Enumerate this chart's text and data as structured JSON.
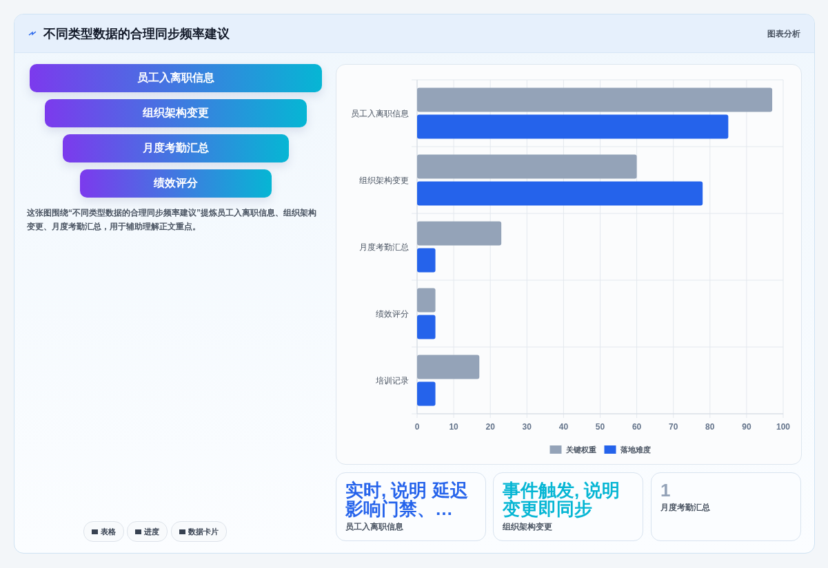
{
  "chart_data": [
    {
      "type": "other",
      "title": "不同类型数据的合理同步频率建议",
      "categories": [
        "员工入离职信息",
        "组织架构变更",
        "月度考勤汇总",
        "绩效评分"
      ],
      "annotations": [
        "图表分析",
        "这张图围绕“不同类型数据的合理同步频率建议”提炼员工入离职信息、组织架构变更、月度考勤汇总，用于辅助理解正文重点。",
        "表格",
        "进度",
        "数据卡片"
      ]
    },
    {
      "type": "bar",
      "orientation": "horizontal",
      "categories": [
        "员工入离职信息",
        "组织架构变更",
        "月度考勤汇总",
        "绩效评分",
        "培训记录"
      ],
      "series": [
        {
          "name": "关键权重",
          "color": "#94a3b8",
          "values": [
            97,
            60,
            23,
            5,
            17
          ]
        },
        {
          "name": "落地难度",
          "color": "#2563eb",
          "values": [
            85,
            78,
            5,
            5,
            5
          ]
        }
      ],
      "xlim": [
        0,
        100
      ],
      "xticks": [
        0,
        10,
        20,
        30,
        40,
        50,
        60,
        70,
        80,
        90,
        100
      ],
      "grid": true,
      "legend": "bottom"
    },
    {
      "type": "other",
      "categories": [
        "员工入离职信息",
        "组织架构变更",
        "月度考勤汇总"
      ],
      "value_labels": [
        "实时, 说明 延迟影响门禁、…",
        "事件触发, 说明变更即同步",
        "1"
      ]
    }
  ]
}
